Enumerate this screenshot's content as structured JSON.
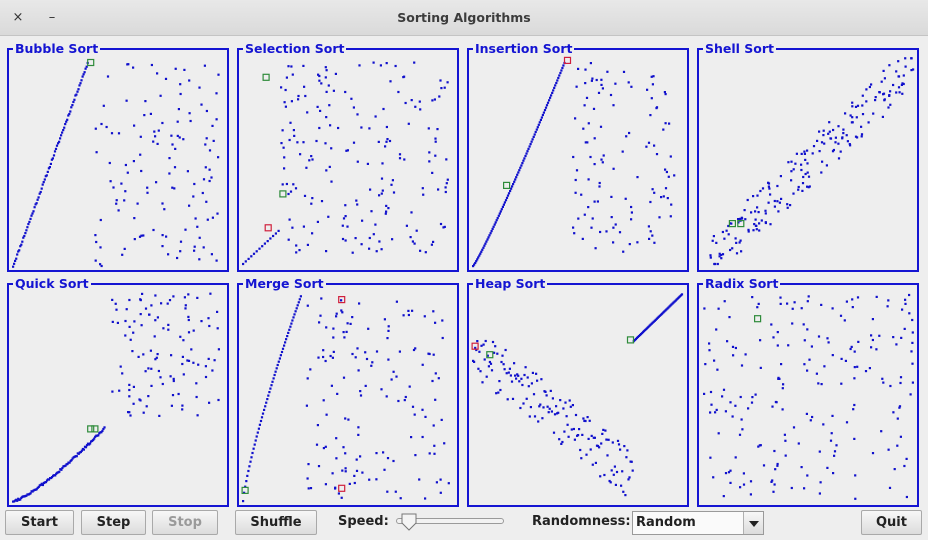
{
  "window": {
    "title": "Sorting Algorithms",
    "close_glyph": "×",
    "minimize_glyph": "–"
  },
  "colors": {
    "accent": "#1414d2",
    "point": "#1010cc",
    "highlight_green": "#2e8b3a",
    "highlight_red": "#d0203c"
  },
  "panels": [
    {
      "label": "Bubble Sort"
    },
    {
      "label": "Selection Sort"
    },
    {
      "label": "Insertion Sort"
    },
    {
      "label": "Shell Sort"
    },
    {
      "label": "Quick Sort"
    },
    {
      "label": "Merge Sort"
    },
    {
      "label": "Heap Sort"
    },
    {
      "label": "Radix Sort"
    }
  ],
  "controls": {
    "start": "Start",
    "step": "Step",
    "stop": "Stop",
    "shuffle": "Shuffle",
    "speed_label": "Speed:",
    "speed_value": 0.05,
    "randomness_label": "Randomness:",
    "randomness_value": "Random",
    "quit": "Quit"
  }
}
